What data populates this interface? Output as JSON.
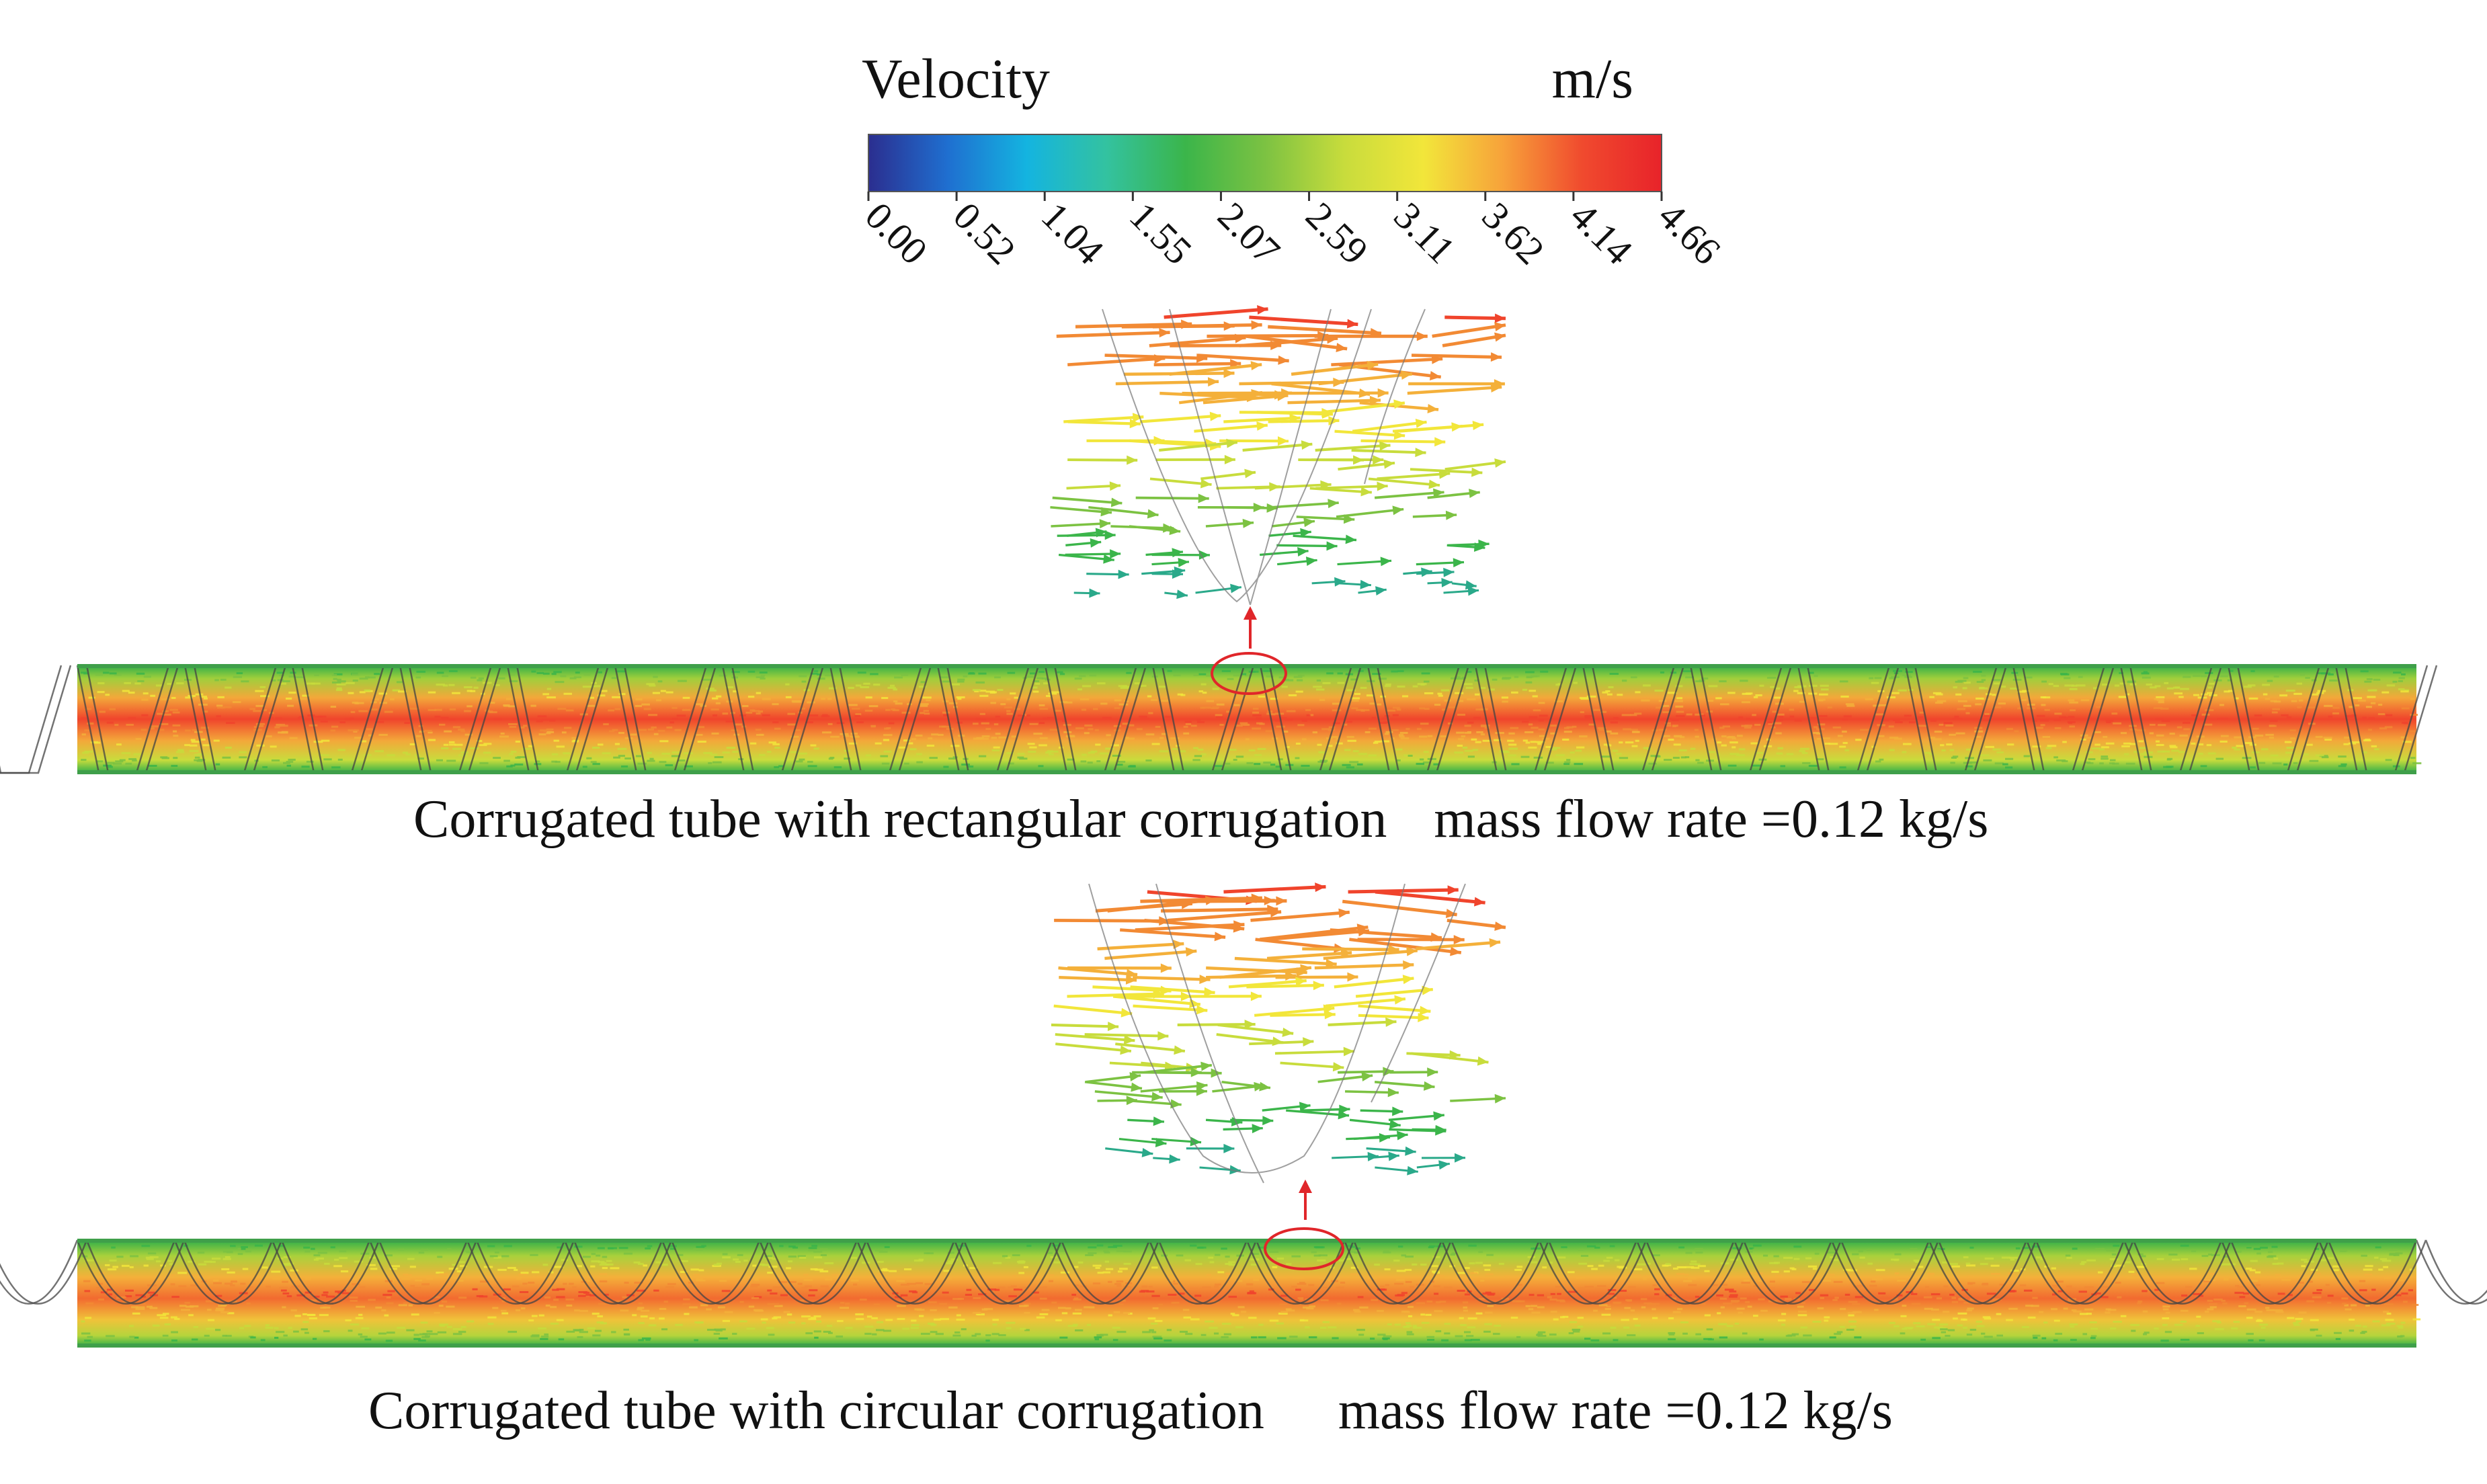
{
  "colorbar": {
    "title": "Velocity",
    "unit": "m/s",
    "ticks": [
      "0.00",
      "0.52",
      "1.04",
      "1.55",
      "2.07",
      "2.59",
      "3.11",
      "3.62",
      "4.14",
      "4.66"
    ],
    "min": 0.0,
    "max": 4.66,
    "colors": [
      "#2b2e8f",
      "#1f6fd0",
      "#14b4e0",
      "#33c2a0",
      "#3bb54a",
      "#7cc242",
      "#c8dc3c",
      "#f2e63a",
      "#f7a23a",
      "#f04a2e",
      "#e8232a"
    ]
  },
  "panels": [
    {
      "id": "rectangular",
      "caption": "Corrugated tube with rectangular corrugation",
      "flow_rate": "mass flow rate =0.12 kg/s"
    },
    {
      "id": "circular",
      "caption": "Corrugated tube with circular corrugation",
      "flow_rate": "mass flow rate =0.12 kg/s"
    }
  ],
  "colors": {
    "callout": "#e0262a",
    "wall_lines": "#555555",
    "core": "#f04a2e",
    "near_wall": "#3bb54a"
  }
}
